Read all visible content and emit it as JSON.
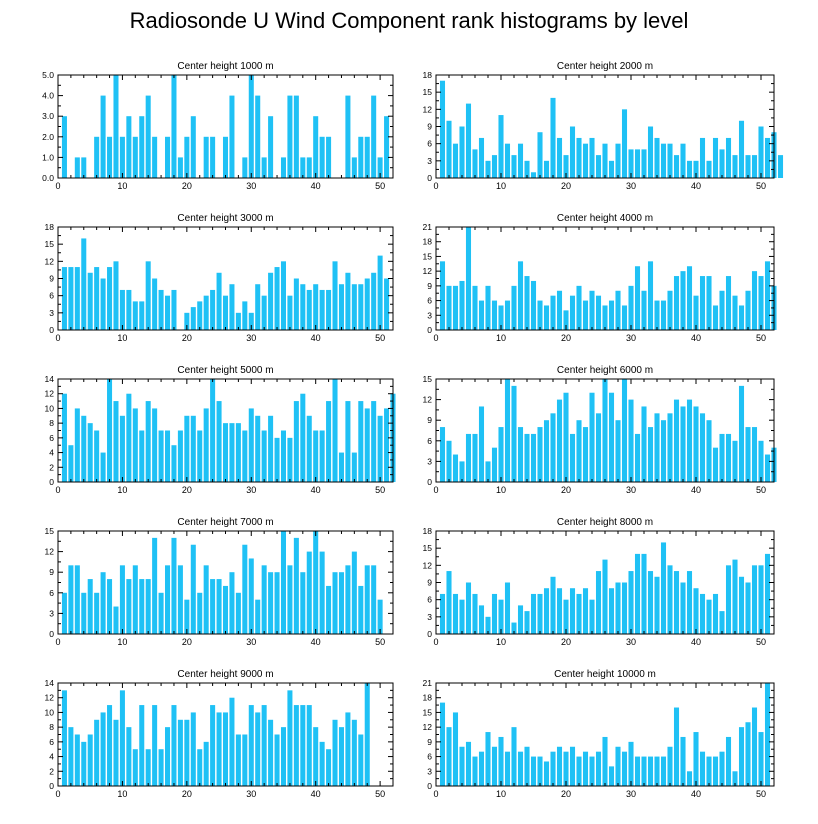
{
  "title": "Radiosonde U Wind Component rank histograms by level",
  "bar_color": "#1fc1f5",
  "chart_data": [
    {
      "type": "bar",
      "title": "Center height 1000 m",
      "xticks": [
        0,
        10,
        20,
        30,
        40,
        50
      ],
      "xlim": [
        0,
        52
      ],
      "yticks": [
        "0.0",
        "1.0",
        "2.0",
        "3.0",
        "4.0",
        "5.0"
      ],
      "ylim": [
        0,
        5
      ],
      "values": [
        3,
        0,
        1,
        1,
        0,
        2,
        4,
        2,
        5,
        2,
        3,
        2,
        3,
        4,
        2,
        0,
        2,
        5,
        1,
        2,
        3,
        0,
        2,
        2,
        0,
        2,
        4,
        0,
        1,
        5,
        4,
        1,
        3,
        0,
        1,
        4,
        4,
        1,
        1,
        3,
        2,
        2,
        0,
        0,
        4,
        1,
        2,
        2,
        4,
        1,
        3
      ]
    },
    {
      "type": "bar",
      "title": "Center height 2000 m",
      "xticks": [
        0,
        10,
        20,
        30,
        40,
        50
      ],
      "xlim": [
        0,
        52
      ],
      "yticks": [
        "0",
        "3",
        "6",
        "9",
        "12",
        "15",
        "18"
      ],
      "ylim": [
        0,
        18
      ],
      "values": [
        17,
        10,
        6,
        9,
        13,
        5,
        7,
        3,
        4,
        11,
        6,
        4,
        6,
        3,
        1,
        8,
        3,
        14,
        7,
        4,
        9,
        7,
        6,
        7,
        4,
        6,
        3,
        6,
        12,
        5,
        5,
        5,
        9,
        7,
        6,
        6,
        4,
        6,
        3,
        3,
        7,
        3,
        7,
        5,
        7,
        4,
        10,
        4,
        4,
        9,
        7,
        8,
        4
      ]
    },
    {
      "type": "bar",
      "title": "Center height 3000 m",
      "xticks": [
        0,
        10,
        20,
        30,
        40,
        50
      ],
      "xlim": [
        0,
        52
      ],
      "yticks": [
        "0",
        "3",
        "6",
        "9",
        "12",
        "15",
        "18"
      ],
      "ylim": [
        0,
        18
      ],
      "values": [
        11,
        11,
        11,
        16,
        10,
        11,
        9,
        11,
        12,
        7,
        7,
        5,
        5,
        12,
        9,
        7,
        6,
        7,
        0,
        3,
        4,
        5,
        6,
        7,
        10,
        6,
        8,
        3,
        5,
        3,
        8,
        6,
        10,
        11,
        12,
        6,
        9,
        8,
        7,
        8,
        7,
        7,
        12,
        8,
        10,
        8,
        8,
        9,
        10,
        13,
        9
      ]
    },
    {
      "type": "bar",
      "title": "Center height 4000 m",
      "xticks": [
        0,
        10,
        20,
        30,
        40,
        50
      ],
      "xlim": [
        0,
        52
      ],
      "yticks": [
        "0",
        "3",
        "6",
        "9",
        "12",
        "15",
        "18",
        "21"
      ],
      "ylim": [
        0,
        21
      ],
      "values": [
        14,
        9,
        9,
        10,
        21,
        9,
        6,
        9,
        6,
        5,
        6,
        9,
        14,
        11,
        10,
        6,
        5,
        7,
        8,
        4,
        7,
        9,
        6,
        8,
        7,
        5,
        6,
        8,
        5,
        9,
        13,
        8,
        14,
        6,
        6,
        8,
        11,
        12,
        13,
        7,
        11,
        11,
        5,
        8,
        11,
        7,
        5,
        8,
        12,
        11,
        14,
        9
      ]
    },
    {
      "type": "bar",
      "title": "Center height 5000 m",
      "xticks": [
        0,
        10,
        20,
        30,
        40,
        50
      ],
      "xlim": [
        0,
        52
      ],
      "yticks": [
        "0",
        "2",
        "4",
        "6",
        "8",
        "10",
        "12",
        "14"
      ],
      "ylim": [
        0,
        14
      ],
      "values": [
        12,
        5,
        10,
        9,
        8,
        7,
        4,
        14,
        11,
        9,
        12,
        10,
        7,
        11,
        10,
        7,
        7,
        5,
        7,
        9,
        9,
        7,
        10,
        14,
        11,
        8,
        8,
        8,
        7,
        10,
        9,
        7,
        9,
        6,
        7,
        6,
        11,
        12,
        9,
        7,
        7,
        11,
        14,
        4,
        11,
        4,
        11,
        10,
        11,
        9,
        10,
        12
      ]
    },
    {
      "type": "bar",
      "title": "Center height 6000 m",
      "xticks": [
        0,
        10,
        20,
        30,
        40,
        50
      ],
      "xlim": [
        0,
        52
      ],
      "yticks": [
        "0",
        "3",
        "6",
        "9",
        "12",
        "15"
      ],
      "ylim": [
        0,
        15
      ],
      "values": [
        8,
        6,
        4,
        3,
        7,
        7,
        11,
        3,
        5,
        8,
        15,
        14,
        8,
        7,
        7,
        8,
        9,
        10,
        12,
        13,
        7,
        9,
        8,
        13,
        10,
        15,
        13,
        9,
        15,
        12,
        7,
        11,
        8,
        10,
        9,
        10,
        12,
        11,
        12,
        11,
        10,
        9,
        5,
        7,
        7,
        6,
        14,
        8,
        8,
        6,
        4,
        5
      ]
    },
    {
      "type": "bar",
      "title": "Center height 7000 m",
      "xticks": [
        0,
        10,
        20,
        30,
        40,
        50
      ],
      "xlim": [
        0,
        52
      ],
      "yticks": [
        "0",
        "3",
        "6",
        "9",
        "12",
        "15"
      ],
      "ylim": [
        0,
        15
      ],
      "values": [
        6,
        10,
        10,
        6,
        8,
        6,
        9,
        8,
        4,
        10,
        8,
        10,
        8,
        8,
        14,
        6,
        10,
        14,
        10,
        5,
        13,
        6,
        10,
        8,
        8,
        7,
        9,
        6,
        13,
        11,
        5,
        10,
        9,
        9,
        15,
        10,
        14,
        9,
        12,
        15,
        12,
        7,
        9,
        9,
        10,
        12,
        7,
        10,
        10,
        5
      ]
    },
    {
      "type": "bar",
      "title": "Center height 8000 m",
      "xticks": [
        0,
        10,
        20,
        30,
        40,
        50
      ],
      "xlim": [
        0,
        52
      ],
      "yticks": [
        "0",
        "3",
        "6",
        "9",
        "12",
        "15",
        "18"
      ],
      "ylim": [
        0,
        18
      ],
      "values": [
        7,
        11,
        7,
        6,
        9,
        7,
        5,
        3,
        7,
        6,
        9,
        2,
        5,
        4,
        7,
        7,
        8,
        10,
        8,
        6,
        8,
        7,
        8,
        6,
        11,
        13,
        8,
        9,
        9,
        11,
        14,
        14,
        11,
        10,
        16,
        12,
        11,
        9,
        11,
        8,
        7,
        6,
        7,
        4,
        12,
        13,
        10,
        9,
        12,
        12,
        14
      ]
    },
    {
      "type": "bar",
      "title": "Center height 9000 m",
      "xticks": [
        0,
        10,
        20,
        30,
        40,
        50
      ],
      "xlim": [
        0,
        52
      ],
      "yticks": [
        "0",
        "2",
        "4",
        "6",
        "8",
        "10",
        "12",
        "14"
      ],
      "ylim": [
        0,
        14
      ],
      "values": [
        13,
        8,
        7,
        6,
        7,
        9,
        10,
        11,
        9,
        13,
        8,
        5,
        11,
        5,
        11,
        5,
        8,
        11,
        9,
        9,
        10,
        5,
        6,
        11,
        10,
        10,
        12,
        7,
        7,
        11,
        10,
        11,
        9,
        7,
        8,
        13,
        11,
        11,
        11,
        8,
        6,
        5,
        9,
        8,
        10,
        9,
        7,
        14
      ]
    },
    {
      "type": "bar",
      "title": "Center height 10000 m",
      "xticks": [
        0,
        10,
        20,
        30,
        40,
        50
      ],
      "xlim": [
        0,
        52
      ],
      "yticks": [
        "0",
        "3",
        "6",
        "9",
        "12",
        "15",
        "18",
        "21"
      ],
      "ylim": [
        0,
        21
      ],
      "values": [
        17,
        12,
        15,
        8,
        9,
        6,
        7,
        11,
        8,
        10,
        7,
        12,
        7,
        8,
        6,
        6,
        5,
        7,
        8,
        7,
        8,
        6,
        7,
        6,
        7,
        10,
        4,
        8,
        7,
        9,
        6,
        6,
        6,
        6,
        6,
        8,
        16,
        10,
        3,
        11,
        7,
        6,
        6,
        7,
        10,
        3,
        12,
        13,
        16,
        11,
        21
      ]
    }
  ]
}
